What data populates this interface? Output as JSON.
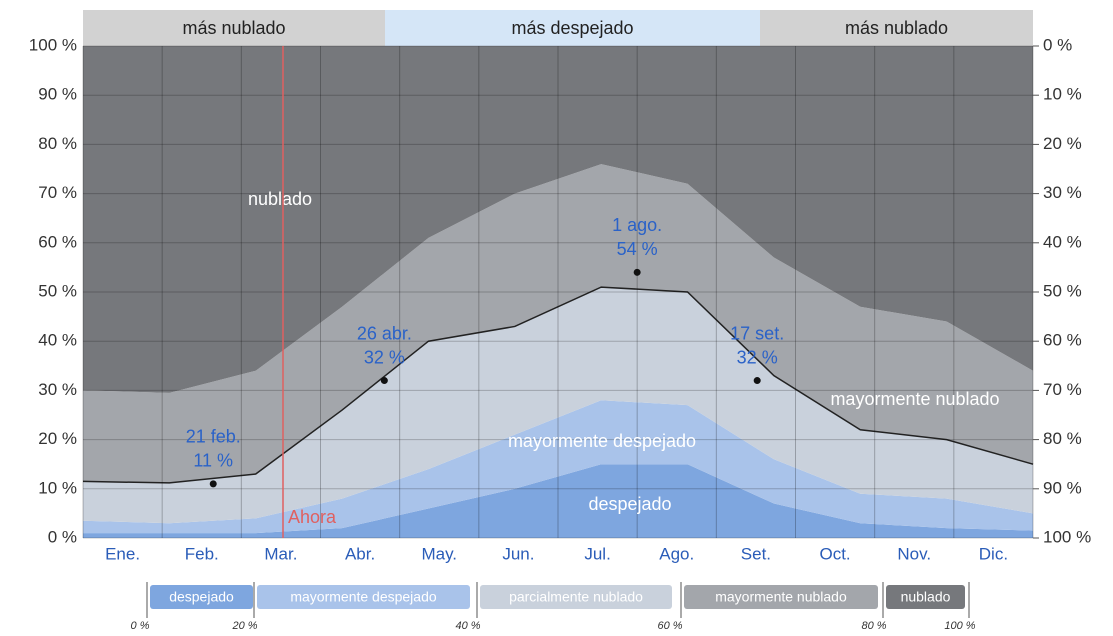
{
  "chart_data": {
    "type": "stacked_area",
    "categories": [
      "Ene.",
      "Feb.",
      "Mar.",
      "Abr.",
      "May.",
      "Jun.",
      "Jul.",
      "Ago.",
      "Set.",
      "Oct.",
      "Nov.",
      "Dic."
    ],
    "series": [
      {
        "name": "despejado",
        "color": "#7ea6df",
        "values": [
          1,
          1,
          1,
          2,
          6,
          10,
          15,
          15,
          7,
          3,
          2,
          1.5
        ]
      },
      {
        "name": "mayormente despejado",
        "color": "#a9c3ea",
        "values": [
          2.5,
          2,
          3,
          6,
          8,
          11,
          13,
          12,
          9,
          6,
          6,
          3.5
        ]
      },
      {
        "name": "parcialmente nublado",
        "color": "#c9d1dc",
        "values": [
          8,
          8.2,
          9,
          18,
          26,
          22,
          23,
          23,
          17,
          13,
          12,
          10
        ]
      },
      {
        "name": "mayormente nublado",
        "color": "#a3a6ab",
        "values": [
          18.5,
          18.3,
          21,
          21,
          21,
          27,
          25,
          22,
          24,
          25,
          24,
          19
        ]
      },
      {
        "name": "nublado",
        "color": "#76787c",
        "values": [
          70,
          70.5,
          66,
          53,
          39,
          30,
          24,
          28,
          43,
          53,
          56,
          66
        ]
      }
    ],
    "ylim": [
      0,
      100
    ],
    "yticks": [
      {
        "value": 0,
        "label": "0 %"
      },
      {
        "value": 10,
        "label": "10 %"
      },
      {
        "value": 20,
        "label": "20 %"
      },
      {
        "value": 30,
        "label": "30 %"
      },
      {
        "value": 40,
        "label": "40 %"
      },
      {
        "value": 50,
        "label": "50 %"
      },
      {
        "value": 60,
        "label": "60 %"
      },
      {
        "value": 70,
        "label": "70 %"
      },
      {
        "value": 80,
        "label": "80 %"
      },
      {
        "value": 90,
        "label": "90 %"
      },
      {
        "value": 100,
        "label": "100 %"
      }
    ],
    "y2lim": [
      100,
      0
    ],
    "y2ticks": [
      {
        "value": 0,
        "label": "0 %"
      },
      {
        "value": 10,
        "label": "10 %"
      },
      {
        "value": 20,
        "label": "20 %"
      },
      {
        "value": 30,
        "label": "30 %"
      },
      {
        "value": 40,
        "label": "40 %"
      },
      {
        "value": 50,
        "label": "50 %"
      },
      {
        "value": 60,
        "label": "60 %"
      },
      {
        "value": 70,
        "label": "70 %"
      },
      {
        "value": 80,
        "label": "80 %"
      },
      {
        "value": 90,
        "label": "90 %"
      },
      {
        "value": 100,
        "label": "100 %"
      }
    ],
    "grid": true,
    "top_bands": [
      "más nublado",
      "más despejado",
      "más nublado"
    ],
    "now_label": "Ahora",
    "annotations": [
      {
        "date": "21 feb.",
        "value": 11,
        "value_label": "11 %"
      },
      {
        "date": "26 abr.",
        "value": 32,
        "value_label": "32 %"
      },
      {
        "date": "1 ago.",
        "value": 54,
        "value_label": "54 %"
      },
      {
        "date": "17 set.",
        "value": 32,
        "value_label": "32 %"
      }
    ],
    "legend_scale": [
      {
        "value": 0,
        "label": "0 %"
      },
      {
        "value": 20,
        "label": "20 %"
      },
      {
        "value": 40,
        "label": "40 %"
      },
      {
        "value": 60,
        "label": "60 %"
      },
      {
        "value": 80,
        "label": "80 %"
      },
      {
        "value": 100,
        "label": "100 %"
      }
    ]
  }
}
